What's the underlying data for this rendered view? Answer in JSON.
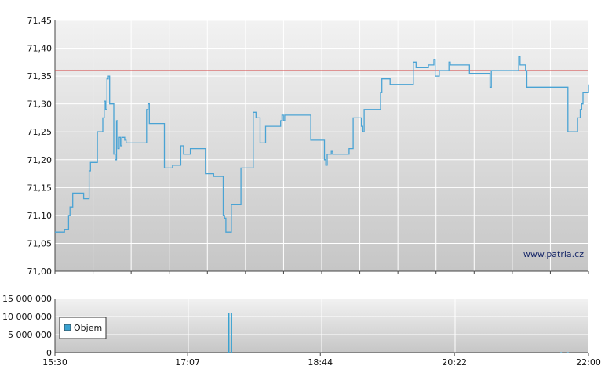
{
  "watermark": "www.patria.cz",
  "colors": {
    "price_line": "#4aa3d4",
    "reference_line": "#d23c3c",
    "volume_bar": "#3aa2d0",
    "grid": "#ffffff",
    "bg_top": "#f2f2f2",
    "bg_bottom": "#c6c6c6"
  },
  "chart_data": [
    {
      "type": "line",
      "title": "",
      "xlabel": "",
      "ylabel": "",
      "x_unit": "time of day (HH:MM)",
      "xlim": [
        "15:30",
        "22:00"
      ],
      "x_ticks": [
        "15:30",
        "17:07",
        "18:44",
        "20:22",
        "22:00"
      ],
      "ylim": [
        71.0,
        71.45
      ],
      "y_ticks": [
        "71,00",
        "71,05",
        "71,10",
        "71,15",
        "71,20",
        "71,25",
        "71,30",
        "71,35",
        "71,40",
        "71,45"
      ],
      "y_tick_values": [
        71.0,
        71.05,
        71.1,
        71.15,
        71.2,
        71.25,
        71.3,
        71.35,
        71.4,
        71.45
      ],
      "reference_line": 71.36,
      "grid": true,
      "series": [
        {
          "points": [
            [
              "15:30",
              71.07
            ],
            [
              "15:36",
              71.07
            ],
            [
              "15:37",
              71.075
            ],
            [
              "15:39",
              71.075
            ],
            [
              "15:40",
              71.1
            ],
            [
              "15:41",
              71.115
            ],
            [
              "15:42",
              71.115
            ],
            [
              "15:43",
              71.14
            ],
            [
              "15:50",
              71.14
            ],
            [
              "15:51",
              71.13
            ],
            [
              "15:54",
              71.13
            ],
            [
              "15:55",
              71.18
            ],
            [
              "15:56",
              71.195
            ],
            [
              "16:00",
              71.195
            ],
            [
              "16:01",
              71.25
            ],
            [
              "16:04",
              71.25
            ],
            [
              "16:05",
              71.275
            ],
            [
              "16:06",
              71.305
            ],
            [
              "16:07",
              71.29
            ],
            [
              "16:08",
              71.345
            ],
            [
              "16:09",
              71.35
            ],
            [
              "16:10",
              71.3
            ],
            [
              "16:12",
              71.3
            ],
            [
              "16:13",
              71.21
            ],
            [
              "16:14",
              71.2
            ],
            [
              "16:15",
              71.27
            ],
            [
              "16:16",
              71.22
            ],
            [
              "16:17",
              71.24
            ],
            [
              "16:18",
              71.225
            ],
            [
              "16:19",
              71.24
            ],
            [
              "16:21",
              71.235
            ],
            [
              "16:22",
              71.23
            ],
            [
              "16:36",
              71.23
            ],
            [
              "16:37",
              71.29
            ],
            [
              "16:38",
              71.3
            ],
            [
              "16:39",
              71.265
            ],
            [
              "16:49",
              71.265
            ],
            [
              "16:50",
              71.185
            ],
            [
              "16:55",
              71.185
            ],
            [
              "16:56",
              71.19
            ],
            [
              "17:01",
              71.19
            ],
            [
              "17:02",
              71.225
            ],
            [
              "17:04",
              71.21
            ],
            [
              "17:08",
              71.21
            ],
            [
              "17:09",
              71.22
            ],
            [
              "17:19",
              71.22
            ],
            [
              "17:20",
              71.175
            ],
            [
              "17:25",
              71.175
            ],
            [
              "17:26",
              71.17
            ],
            [
              "17:32",
              71.17
            ],
            [
              "17:33",
              71.1
            ],
            [
              "17:34",
              71.095
            ],
            [
              "17:35",
              71.07
            ],
            [
              "17:38",
              71.07
            ],
            [
              "17:39",
              71.12
            ],
            [
              "17:45",
              71.12
            ],
            [
              "17:46",
              71.185
            ],
            [
              "17:54",
              71.185
            ],
            [
              "17:55",
              71.285
            ],
            [
              "17:57",
              71.275
            ],
            [
              "17:59",
              71.275
            ],
            [
              "18:00",
              71.23
            ],
            [
              "18:03",
              71.23
            ],
            [
              "18:04",
              71.26
            ],
            [
              "18:14",
              71.26
            ],
            [
              "18:15",
              71.27
            ],
            [
              "18:16",
              71.28
            ],
            [
              "18:17",
              71.27
            ],
            [
              "18:18",
              71.28
            ],
            [
              "18:36",
              71.28
            ],
            [
              "18:37",
              71.235
            ],
            [
              "18:46",
              71.235
            ],
            [
              "18:47",
              71.2
            ],
            [
              "18:48",
              71.19
            ],
            [
              "18:49",
              71.21
            ],
            [
              "18:52",
              71.215
            ],
            [
              "18:53",
              71.21
            ],
            [
              "19:04",
              71.21
            ],
            [
              "19:05",
              71.22
            ],
            [
              "19:07",
              71.22
            ],
            [
              "19:08",
              71.275
            ],
            [
              "19:13",
              71.275
            ],
            [
              "19:14",
              71.26
            ],
            [
              "19:15",
              71.25
            ],
            [
              "19:16",
              71.29
            ],
            [
              "19:27",
              71.29
            ],
            [
              "19:28",
              71.32
            ],
            [
              "19:29",
              71.345
            ],
            [
              "19:30",
              71.345
            ],
            [
              "19:34",
              71.345
            ],
            [
              "19:35",
              71.335
            ],
            [
              "19:51",
              71.335
            ],
            [
              "19:52",
              71.375
            ],
            [
              "19:54",
              71.365
            ],
            [
              "20:02",
              71.365
            ],
            [
              "20:03",
              71.37
            ],
            [
              "20:06",
              71.37
            ],
            [
              "20:07",
              71.38
            ],
            [
              "20:08",
              71.35
            ],
            [
              "20:10",
              71.35
            ],
            [
              "20:11",
              71.36
            ],
            [
              "20:17",
              71.36
            ],
            [
              "20:18",
              71.375
            ],
            [
              "20:19",
              71.37
            ],
            [
              "20:32",
              71.37
            ],
            [
              "20:33",
              71.355
            ],
            [
              "20:47",
              71.355
            ],
            [
              "20:48",
              71.33
            ],
            [
              "20:49",
              71.36
            ],
            [
              "21:08",
              71.36
            ],
            [
              "21:09",
              71.385
            ],
            [
              "21:10",
              71.37
            ],
            [
              "21:14",
              71.36
            ],
            [
              "21:15",
              71.33
            ],
            [
              "21:44",
              71.33
            ],
            [
              "21:45",
              71.25
            ],
            [
              "21:51",
              71.25
            ],
            [
              "21:52",
              71.275
            ],
            [
              "21:54",
              71.29
            ],
            [
              "21:55",
              71.3
            ],
            [
              "21:56",
              71.32
            ],
            [
              "21:59",
              71.32
            ],
            [
              "22:00",
              71.335
            ]
          ]
        }
      ]
    },
    {
      "type": "bar",
      "title": "",
      "xlabel": "",
      "ylabel": "",
      "xlim": [
        "15:30",
        "22:00"
      ],
      "x_ticks": [
        "15:30",
        "17:07",
        "18:44",
        "20:22",
        "22:00"
      ],
      "ylim": [
        0,
        15000000
      ],
      "y_ticks": [
        "15 000 000",
        "10 000 000",
        "5 000 000",
        "0"
      ],
      "y_tick_values": [
        15000000,
        10000000,
        5000000,
        0
      ],
      "grid": true,
      "legend": {
        "entries": [
          "Objem"
        ],
        "placement": "left"
      },
      "series": [
        {
          "name": "Objem",
          "points": [
            [
              "17:37",
              11000000
            ],
            [
              "17:39",
              11000000
            ],
            [
              "21:40",
              120000
            ],
            [
              "21:45",
              120000
            ]
          ]
        }
      ]
    }
  ]
}
